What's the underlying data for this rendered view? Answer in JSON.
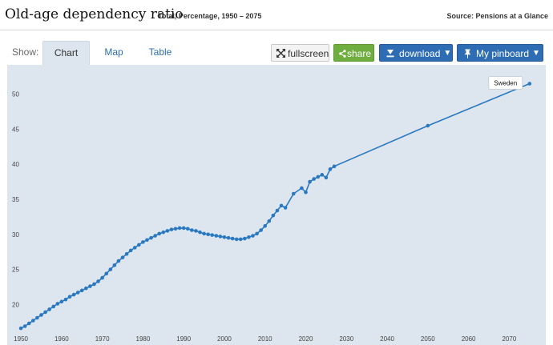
{
  "header": {
    "title": "Old-age dependency ratio",
    "subtitle": "Total, Percentage, 1950 – 2075",
    "source": "Source: Pensions at a Glance"
  },
  "toolbar": {
    "show_label": "Show:",
    "tabs": [
      {
        "label": "Chart",
        "active": true
      },
      {
        "label": "Map",
        "active": false
      },
      {
        "label": "Table",
        "active": false
      }
    ],
    "fullscreen_label": "fullscreen",
    "share_label": "share",
    "download_label": "download",
    "pinboard_label": "My pinboard"
  },
  "colors": {
    "series": "#2a78c0",
    "plot_background": "#dde6ef",
    "share": "#6fae3e",
    "primary_button": "#2e6db4"
  },
  "chart_data": {
    "type": "line",
    "title": "",
    "xlabel": "",
    "ylabel": "",
    "xlim": [
      1949,
      2078
    ],
    "ylim": [
      16.5,
      53.5
    ],
    "x_ticks": [
      1950,
      1960,
      1970,
      1980,
      1990,
      2000,
      2010,
      2020,
      2030,
      2040,
      2050,
      2060,
      2070
    ],
    "y_ticks": [
      20,
      25,
      30,
      35,
      40,
      45,
      50
    ],
    "tooltip": "Sweden",
    "series": [
      {
        "name": "Sweden",
        "x": [
          1950,
          1951,
          1952,
          1953,
          1954,
          1955,
          1956,
          1957,
          1958,
          1959,
          1960,
          1961,
          1962,
          1963,
          1964,
          1965,
          1966,
          1967,
          1968,
          1969,
          1970,
          1971,
          1972,
          1973,
          1974,
          1975,
          1976,
          1977,
          1978,
          1979,
          1980,
          1981,
          1982,
          1983,
          1984,
          1985,
          1986,
          1987,
          1988,
          1989,
          1990,
          1991,
          1992,
          1993,
          1994,
          1995,
          1996,
          1997,
          1998,
          1999,
          2000,
          2001,
          2002,
          2003,
          2004,
          2005,
          2006,
          2007,
          2008,
          2009,
          2010,
          2011,
          2012,
          2013,
          2014,
          2015,
          2017,
          2019,
          2020,
          2021,
          2022,
          2023,
          2024,
          2025,
          2026,
          2027,
          2050,
          2075
        ],
        "values": [
          16.6,
          16.9,
          17.3,
          17.7,
          18.1,
          18.5,
          18.9,
          19.3,
          19.7,
          20.1,
          20.4,
          20.7,
          21.1,
          21.4,
          21.7,
          22.0,
          22.3,
          22.6,
          22.9,
          23.3,
          23.8,
          24.4,
          25.0,
          25.6,
          26.2,
          26.7,
          27.2,
          27.7,
          28.1,
          28.5,
          28.9,
          29.2,
          29.5,
          29.8,
          30.1,
          30.3,
          30.5,
          30.7,
          30.8,
          30.9,
          30.9,
          30.8,
          30.6,
          30.5,
          30.3,
          30.1,
          30.0,
          29.9,
          29.8,
          29.7,
          29.6,
          29.5,
          29.4,
          29.3,
          29.3,
          29.4,
          29.6,
          29.8,
          30.1,
          30.6,
          31.2,
          31.9,
          32.7,
          33.4,
          34.1,
          33.8,
          35.8,
          36.6,
          36.0,
          37.5,
          37.9,
          38.2,
          38.5,
          38.1,
          39.3,
          39.7,
          45.5,
          51.5
        ]
      }
    ]
  }
}
